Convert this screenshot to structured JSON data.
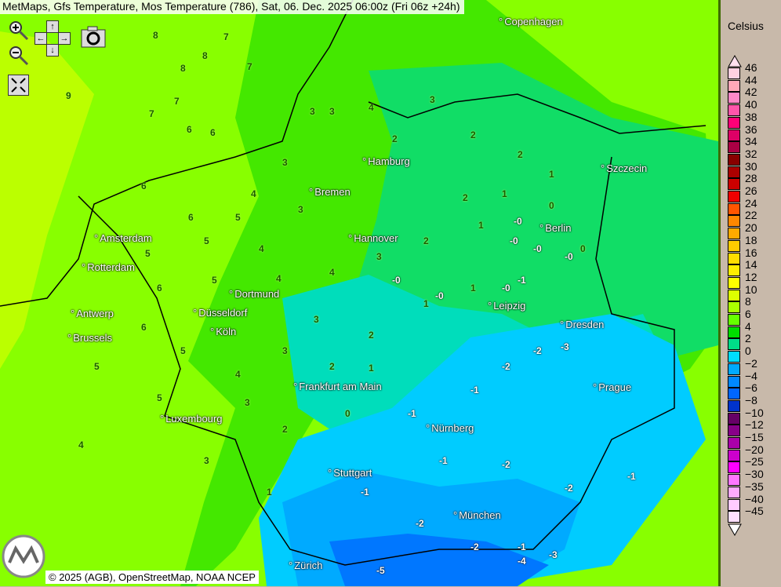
{
  "title": "MetMaps, Gfs Temperature, Mos Temperature (786), Sat, 06. Dec. 2025 06:00z (Fri 06z +24h)",
  "controls": {
    "zoom_in": "zoom-in-icon",
    "zoom_out": "zoom-out-icon",
    "pan_up": "↑",
    "pan_down": "↓",
    "pan_left": "←",
    "pan_right": "→",
    "snapshot": "camera-icon",
    "fullscreen": "fullscreen-icon"
  },
  "copyright": "© 2025 (AGB), OpenStreetMap, NOAA NCEP",
  "logo_text": "METMAPS",
  "cities": [
    "Copenhagen",
    "Hamburg",
    "Bremen",
    "Szczecin",
    "Amsterdam",
    "Berlin",
    "Hannover",
    "Rotterdam",
    "Dortmund",
    "Leipzig",
    "Antwerp",
    "Düsseldorf",
    "Dresden",
    "Köln",
    "Brussels",
    "Frankfurt am Main",
    "Prague",
    "Luxembourg",
    "Nürnberg",
    "Stuttgart",
    "München",
    "Zürich"
  ],
  "stations": [
    "8",
    "7",
    "8",
    "8",
    "7",
    "9",
    "7",
    "7",
    "6",
    "6",
    "3",
    "3",
    "4",
    "3",
    "2",
    "2",
    "2",
    "1",
    "2",
    "1",
    "3",
    "4",
    "3",
    "5",
    "6",
    "6",
    "5",
    "4",
    "4",
    "3",
    "2",
    "1",
    "0",
    "-0",
    "-0",
    "-0",
    "-0",
    "0",
    "5",
    "6",
    "5",
    "4",
    "3",
    "2",
    "1",
    "1",
    "-0",
    "-1",
    "-0",
    "6",
    "5",
    "4",
    "3",
    "2",
    "1",
    "-0",
    "-2",
    "-2",
    "-3",
    "-1",
    "5",
    "5",
    "3",
    "2",
    "0",
    "-1",
    "-1",
    "-2",
    "-2",
    "-1",
    "4",
    "3",
    "1",
    "-1",
    "-2",
    "-2",
    "-1",
    "-3",
    "-5",
    "-4"
  ],
  "legend": {
    "title": "Celsius",
    "labels": [
      "46",
      "44",
      "42",
      "40",
      "38",
      "36",
      "34",
      "32",
      "30",
      "28",
      "26",
      "24",
      "22",
      "20",
      "18",
      "16",
      "14",
      "12",
      "10",
      "8",
      "6",
      "4",
      "2",
      "0",
      "−2",
      "−4",
      "−6",
      "−8",
      "−10",
      "−12",
      "−15",
      "−20",
      "−25",
      "−30",
      "−35",
      "−40",
      "−45"
    ],
    "colors": [
      "#ffd0e0",
      "#ffa8b8",
      "#ff88c8",
      "#ff55aa",
      "#ff0077",
      "#dd0066",
      "#aa0044",
      "#880000",
      "#aa0000",
      "#cc0000",
      "#ee0000",
      "#ff5500",
      "#ff8800",
      "#ffaa00",
      "#ffcc00",
      "#ffdd00",
      "#ffee00",
      "#ffff00",
      "#ddff00",
      "#aaff00",
      "#66ff00",
      "#00dd00",
      "#00dd88",
      "#00ddff",
      "#00aaff",
      "#0088ff",
      "#0066ff",
      "#0033cc",
      "#660066",
      "#880088",
      "#aa00aa",
      "#cc00cc",
      "#ff00ff",
      "#ff77ff",
      "#ffaaff",
      "#ffccff",
      "#ffe0ff"
    ]
  }
}
